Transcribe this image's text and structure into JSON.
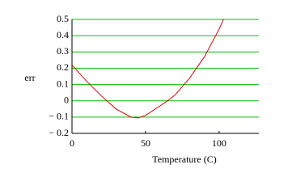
{
  "chart_data": {
    "type": "line",
    "xlabel": "Temperature (C)",
    "ylabel": "err",
    "x": [
      0,
      10,
      20,
      30,
      40,
      45,
      50,
      60,
      65,
      70,
      80,
      90,
      100,
      103
    ],
    "series": [
      {
        "color": "#e00000",
        "values": [
          0.22,
          0.12,
          0.03,
          -0.05,
          -0.1,
          -0.105,
          -0.09,
          -0.03,
          0,
          0.035,
          0.14,
          0.27,
          0.44,
          0.5
        ]
      }
    ],
    "xlim": [
      0,
      127
    ],
    "xticks": [
      0,
      50,
      100
    ],
    "ylim": [
      -0.2,
      0.5
    ],
    "yticks": [
      {
        "value": -0.2,
        "label": "− 0.2"
      },
      {
        "value": -0.1,
        "label": "− 0.1"
      },
      0,
      0.1,
      0.2,
      0.3,
      0.4,
      0.5
    ],
    "grid": true,
    "grid_color": "#00c000"
  }
}
